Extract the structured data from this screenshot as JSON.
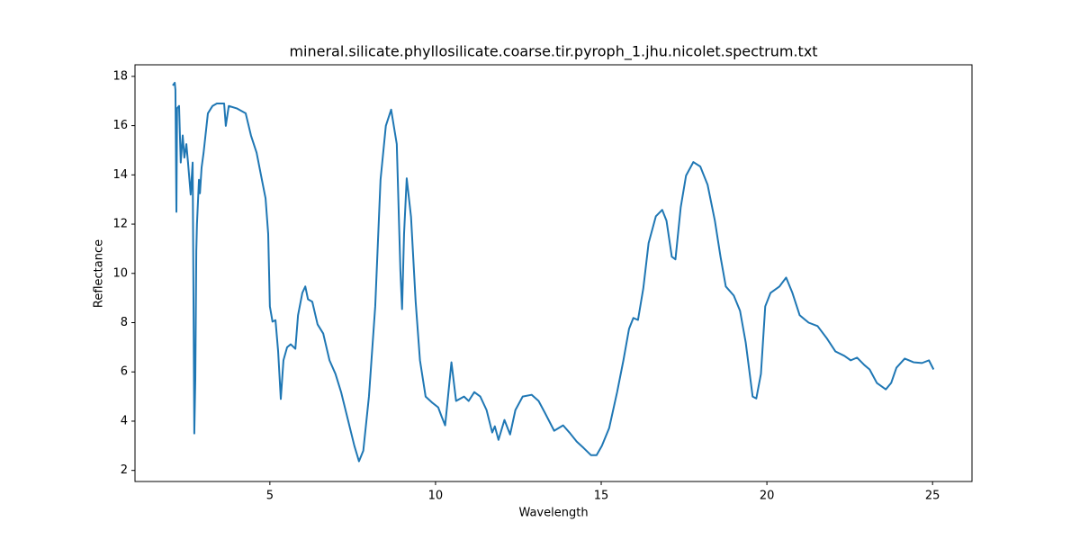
{
  "chart_data": {
    "type": "line",
    "title": "mineral.silicate.phyllosilicate.coarse.tir.pyroph_1.jhu.nicolet.spectrum.txt",
    "xlabel": "Wavelength",
    "ylabel": "Reflectance",
    "color": "#1f77b4",
    "x": [
      2.07,
      2.13,
      2.15,
      2.18,
      2.2,
      2.26,
      2.31,
      2.37,
      2.42,
      2.48,
      2.53,
      2.61,
      2.67,
      2.72,
      2.75,
      2.78,
      2.8,
      2.86,
      2.89,
      2.94,
      3.0,
      3.13,
      3.27,
      3.4,
      3.62,
      3.67,
      3.76,
      4.0,
      4.27,
      4.43,
      4.6,
      4.76,
      4.87,
      4.95,
      5.0,
      5.08,
      5.17,
      5.25,
      5.33,
      5.41,
      5.52,
      5.63,
      5.77,
      5.85,
      5.98,
      6.07,
      6.15,
      6.28,
      6.44,
      6.61,
      6.8,
      6.98,
      7.15,
      7.33,
      7.55,
      7.69,
      7.82,
      7.99,
      8.18,
      8.34,
      8.5,
      8.66,
      8.83,
      8.94,
      8.99,
      9.05,
      9.13,
      9.26,
      9.4,
      9.53,
      9.7,
      9.91,
      10.08,
      10.18,
      10.29,
      10.48,
      10.62,
      10.86,
      11.0,
      11.17,
      11.35,
      11.54,
      11.71,
      11.79,
      11.9,
      12.08,
      12.25,
      12.41,
      12.63,
      12.9,
      13.11,
      13.3,
      13.58,
      13.85,
      14.04,
      14.26,
      14.47,
      14.69,
      14.86,
      15.02,
      15.24,
      15.48,
      15.67,
      15.84,
      15.97,
      16.11,
      16.27,
      16.43,
      16.65,
      16.84,
      16.97,
      17.13,
      17.24,
      17.4,
      17.56,
      17.78,
      17.99,
      18.21,
      18.43,
      18.6,
      18.76,
      19.0,
      19.19,
      19.36,
      19.57,
      19.68,
      19.82,
      19.95,
      20.11,
      20.38,
      20.58,
      20.77,
      20.99,
      21.26,
      21.53,
      21.8,
      22.07,
      22.34,
      22.53,
      22.72,
      22.94,
      23.1,
      23.32,
      23.59,
      23.75,
      23.91,
      24.16,
      24.43,
      24.68,
      24.89,
      25.03
    ],
    "values": [
      17.63,
      17.74,
      17.45,
      12.5,
      16.7,
      16.8,
      14.5,
      15.6,
      14.7,
      15.25,
      14.5,
      13.2,
      14.5,
      3.5,
      5.7,
      10.9,
      12.0,
      13.8,
      13.25,
      14.3,
      14.9,
      16.5,
      16.8,
      16.9,
      16.9,
      15.99,
      16.8,
      16.7,
      16.5,
      15.6,
      14.9,
      13.8,
      13.05,
      11.6,
      8.66,
      8.04,
      8.1,
      6.83,
      4.9,
      6.47,
      7.0,
      7.12,
      6.94,
      8.3,
      9.21,
      9.47,
      8.95,
      8.85,
      7.93,
      7.56,
      6.47,
      5.92,
      5.18,
      4.2,
      3.0,
      2.37,
      2.8,
      5.0,
      8.66,
      13.8,
      15.99,
      16.65,
      15.25,
      10.1,
      8.55,
      11.6,
      13.86,
      12.3,
      8.85,
      6.47,
      5.0,
      4.74,
      4.56,
      4.2,
      3.83,
      6.39,
      4.82,
      5.0,
      4.82,
      5.18,
      5.0,
      4.45,
      3.54,
      3.79,
      3.24,
      4.05,
      3.46,
      4.45,
      5.0,
      5.07,
      4.82,
      4.34,
      3.61,
      3.83,
      3.54,
      3.17,
      2.91,
      2.62,
      2.62,
      3.0,
      3.72,
      5.18,
      6.47,
      7.75,
      8.19,
      8.11,
      9.39,
      11.23,
      12.32,
      12.58,
      12.14,
      10.68,
      10.57,
      12.69,
      13.97,
      14.52,
      14.34,
      13.6,
      12.14,
      10.68,
      9.47,
      9.1,
      8.48,
      7.2,
      5.0,
      4.92,
      5.92,
      8.66,
      9.21,
      9.47,
      9.83,
      9.21,
      8.3,
      8.0,
      7.86,
      7.38,
      6.83,
      6.65,
      6.47,
      6.58,
      6.28,
      6.1,
      5.55,
      5.29,
      5.55,
      6.17,
      6.54,
      6.39,
      6.36,
      6.47,
      6.1
    ],
    "xlim": [
      0.93,
      26.19
    ],
    "xticks": [
      5,
      10,
      15,
      20,
      25
    ],
    "ylim": [
      1.55,
      18.47
    ],
    "yticks": [
      2,
      4,
      6,
      8,
      10,
      12,
      14,
      16,
      18
    ]
  }
}
